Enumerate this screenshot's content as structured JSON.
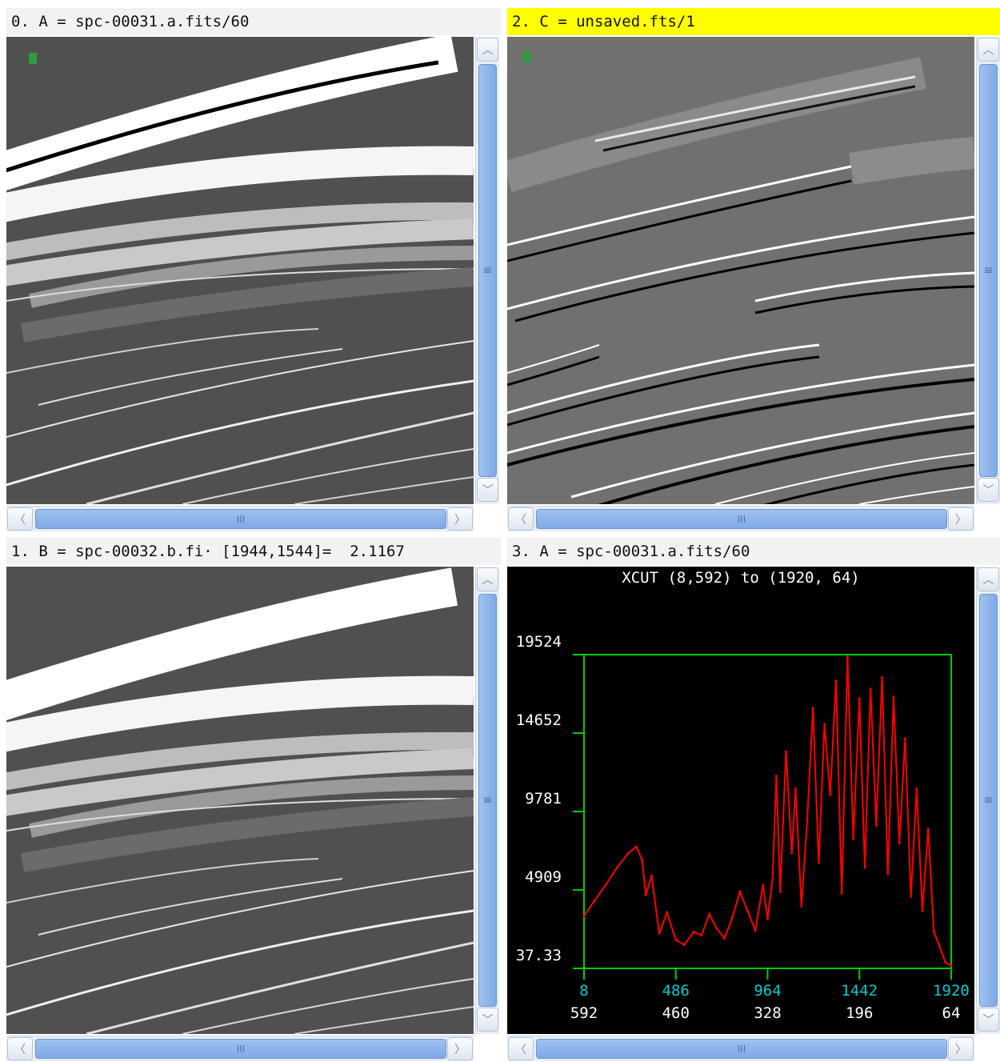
{
  "panels": [
    {
      "title": "0. A = spc-00031.a.fits/60",
      "active": false
    },
    {
      "title": "2. C = unsaved.fts/1",
      "active": true
    },
    {
      "title": "1. B = spc-00032.b.fi· [1944,1544]=  2.1167",
      "active": false
    },
    {
      "title": "3. A = spc-00031.a.fits/60",
      "active": false
    }
  ],
  "scrollbar": {
    "up_glyph": "︿",
    "down_glyph": "﹀",
    "left_glyph": "〈",
    "right_glyph": "〉",
    "v_grip": "≡",
    "h_grip": "III"
  },
  "colors": {
    "active_title": "#ffff00",
    "plot_frame": "#00cc00",
    "plot_line": "#ff0000",
    "tick_label_x": "#00cccc",
    "tick_label_y": "#ffffff"
  },
  "chart_data": {
    "type": "line",
    "title": "XCUT (8,592) to (1920, 64)",
    "xlim": [
      8,
      1920
    ],
    "ylim": [
      37.33,
      19524
    ],
    "x_ticks": [
      "8",
      "486",
      "964",
      "1442",
      "1920"
    ],
    "x_ticks_secondary": [
      "592",
      "460",
      "328",
      "196",
      "64"
    ],
    "y_ticks": [
      "19524",
      "14652",
      "9781",
      "4909",
      "37.33"
    ],
    "series": [
      {
        "x": [
          8,
          60,
          120,
          180,
          240,
          280,
          310,
          330,
          360,
          400,
          440,
          486,
          530,
          580,
          620,
          660,
          700,
          740,
          780,
          820,
          860,
          900,
          940,
          964,
          990,
          1010,
          1030,
          1060,
          1090,
          1110,
          1140,
          1170,
          1200,
          1230,
          1260,
          1290,
          1320,
          1350,
          1380,
          1410,
          1442,
          1470,
          1500,
          1530,
          1560,
          1590,
          1620,
          1650,
          1680,
          1710,
          1740,
          1770,
          1800,
          1830,
          1860,
          1890,
          1920
        ],
        "values": [
          3300,
          4200,
          5200,
          6300,
          7200,
          7600,
          6800,
          4600,
          5800,
          2200,
          3500,
          1800,
          1500,
          2300,
          2100,
          3400,
          2500,
          1900,
          3200,
          4800,
          3600,
          2400,
          5200,
          3100,
          5600,
          12000,
          4800,
          13500,
          7200,
          11200,
          3900,
          9200,
          16200,
          6600,
          15200,
          10800,
          17900,
          4700,
          19400,
          8100,
          16800,
          6300,
          17400,
          8900,
          18100,
          5900,
          16900,
          7800,
          14300,
          4500,
          11200,
          3600,
          8700,
          2300,
          1400,
          400,
          200
        ]
      }
    ]
  }
}
